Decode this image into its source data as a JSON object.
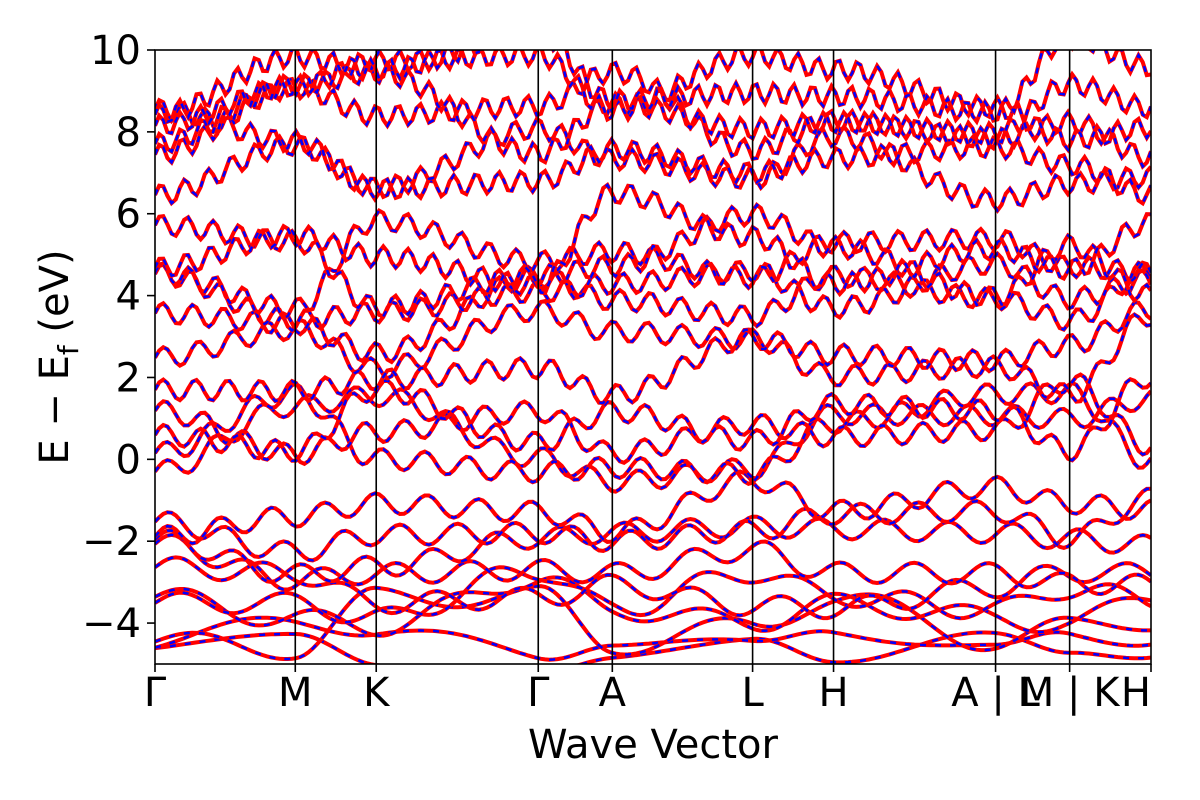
{
  "chart_data": {
    "type": "line",
    "xlabel": "Wave Vector",
    "ylabel_parts": {
      "main": "E − E",
      "sub": "f",
      "unit": " (eV)"
    },
    "ylim": [
      -5,
      10
    ],
    "yticks": [
      -4,
      -2,
      0,
      2,
      4,
      6,
      8,
      10
    ],
    "ytick_labels": [
      "−4",
      "−2",
      "0",
      "2",
      "4",
      "6",
      "8",
      "10"
    ],
    "kpath": [
      {
        "label": "Γ",
        "x": 0.0
      },
      {
        "label": "M",
        "x": 1.0
      },
      {
        "label": "K",
        "x": 1.577
      },
      {
        "label": "Γ",
        "x": 2.732
      },
      {
        "label": "A",
        "x": 3.26
      },
      {
        "label": "L",
        "x": 4.26
      },
      {
        "label": "H",
        "x": 4.837
      },
      {
        "label": "A | L",
        "x": 5.992
      },
      {
        "label": "M | K",
        "x": 6.52
      },
      {
        "label": "H",
        "x": 7.1
      }
    ],
    "xlim": [
      0.0,
      7.1
    ],
    "series": [
      {
        "style": "solid",
        "color": "#ff0000"
      },
      {
        "style": "dashed",
        "color": "#0000ff"
      }
    ],
    "energies_at_gamma": [
      -4.6,
      -4.3,
      -4.0,
      -3.6,
      -3.3,
      -3.0,
      -2.7,
      -2.3,
      -1.6,
      -1.2,
      0.6,
      0.8,
      1.2,
      1.4,
      2.6,
      2.7,
      3.5,
      3.6,
      4.7,
      4.8,
      5.4,
      7.1,
      7.6,
      8.5,
      8.6,
      8.8,
      9.3
    ]
  }
}
